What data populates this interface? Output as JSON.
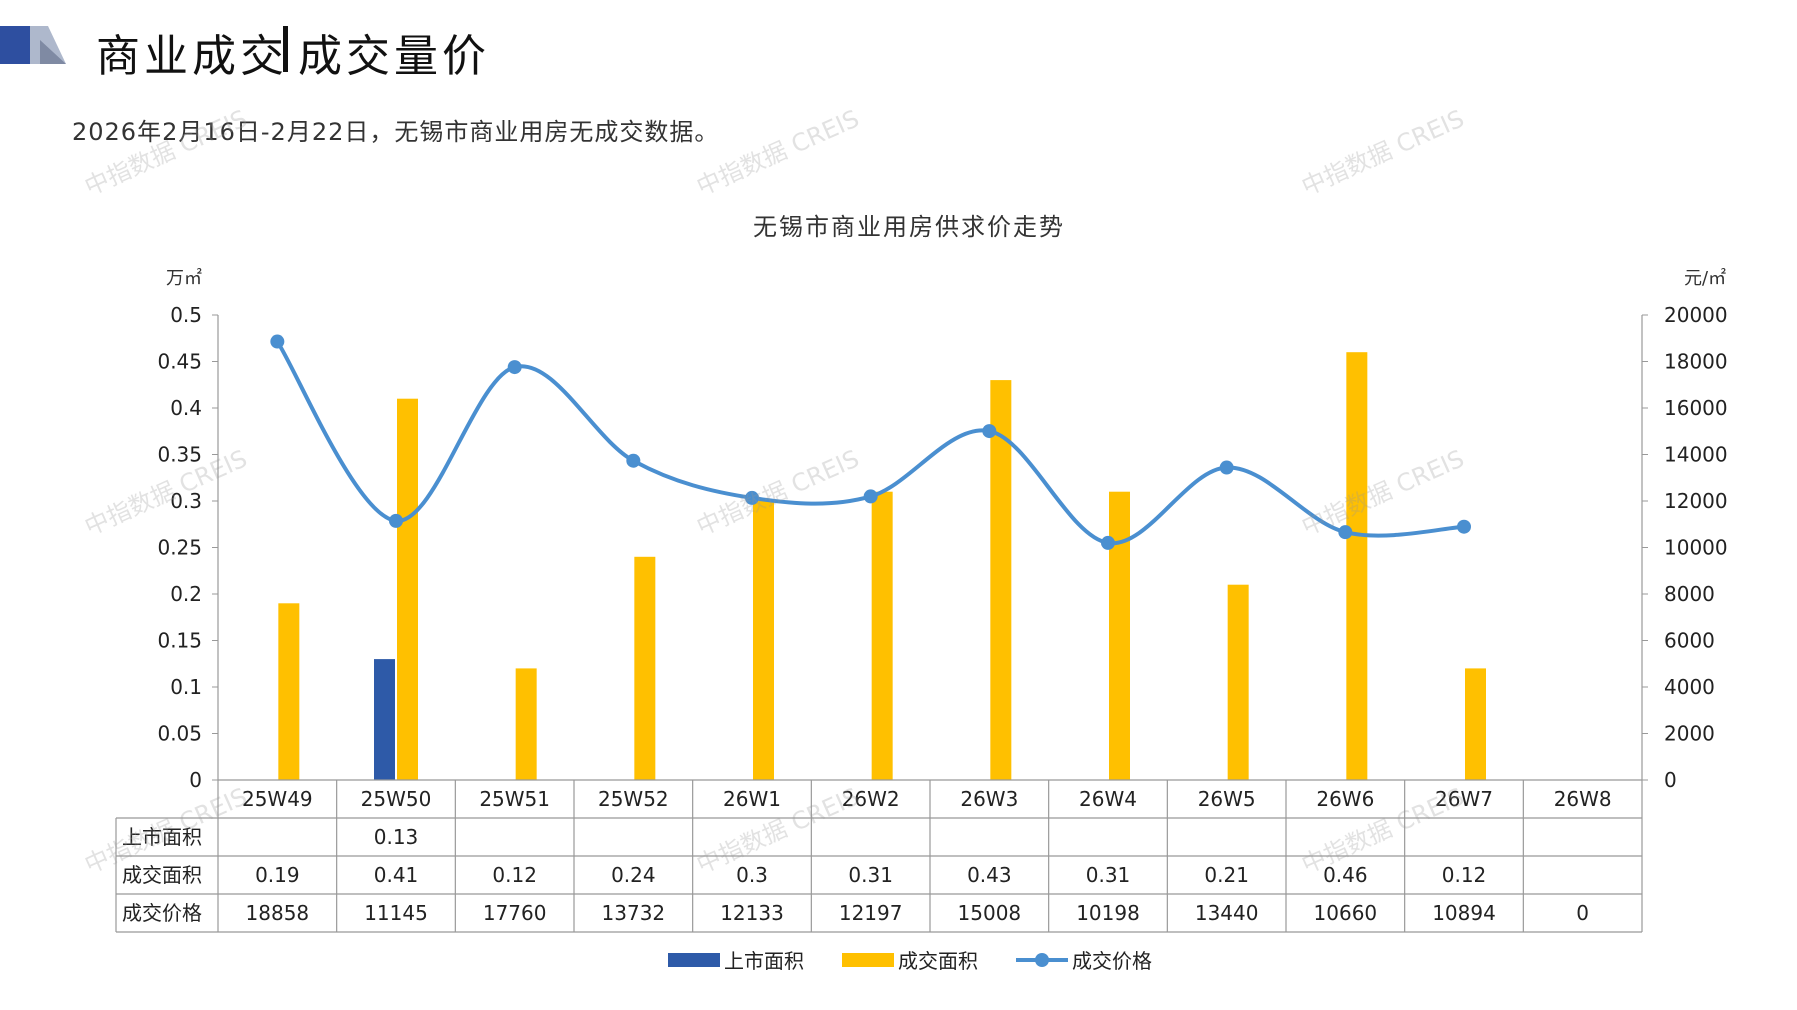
{
  "page": {
    "title_left": "商业成交",
    "title_right": "成交量价",
    "subtitle": "2026年2月16日-2月22日，无锡市商业用房无成交数据。",
    "watermark": "中指数据 CREIS"
  },
  "chart_data": {
    "type": "bar",
    "title": "无锡市商业用房供求价走势",
    "left_unit": "万㎡",
    "right_unit": "元/㎡",
    "categories": [
      "25W49",
      "25W50",
      "25W51",
      "25W52",
      "26W1",
      "26W2",
      "26W3",
      "26W4",
      "26W5",
      "26W6",
      "26W7",
      "26W8"
    ],
    "y_left": {
      "min": 0,
      "max": 0.5,
      "ticks": [
        "0",
        "0.05",
        "0.1",
        "0.15",
        "0.2",
        "0.25",
        "0.3",
        "0.35",
        "0.4",
        "0.45",
        "0.5"
      ]
    },
    "y_right": {
      "min": 0,
      "max": 20000,
      "ticks": [
        "0",
        "2000",
        "4000",
        "6000",
        "8000",
        "10000",
        "12000",
        "14000",
        "16000",
        "18000",
        "20000"
      ]
    },
    "series": [
      {
        "name": "上市面积",
        "type": "bar",
        "axis": "left",
        "color": "#2e5aa8",
        "values": [
          null,
          0.13,
          null,
          null,
          null,
          null,
          null,
          null,
          null,
          null,
          null,
          null
        ],
        "labels": [
          "",
          "0.13",
          "",
          "",
          "",
          "",
          "",
          "",
          "",
          "",
          "",
          ""
        ]
      },
      {
        "name": "成交面积",
        "type": "bar",
        "axis": "left",
        "color": "#ffc000",
        "values": [
          0.19,
          0.41,
          0.12,
          0.24,
          0.3,
          0.31,
          0.43,
          0.31,
          0.21,
          0.46,
          0.12,
          null
        ],
        "labels": [
          "0.19",
          "0.41",
          "0.12",
          "0.24",
          "0.3",
          "0.31",
          "0.43",
          "0.31",
          "0.21",
          "0.46",
          "0.12",
          ""
        ]
      },
      {
        "name": "成交价格",
        "type": "line",
        "axis": "right",
        "color": "#4a8fd0",
        "values": [
          18858,
          11145,
          17760,
          13732,
          12133,
          12197,
          15008,
          10198,
          13440,
          10660,
          10894,
          null
        ],
        "labels": [
          "18858",
          "11145",
          "17760",
          "13732",
          "12133",
          "12197",
          "15008",
          "10198",
          "13440",
          "10660",
          "10894",
          "0"
        ]
      }
    ],
    "legend_position": "bottom",
    "data_table": true
  }
}
